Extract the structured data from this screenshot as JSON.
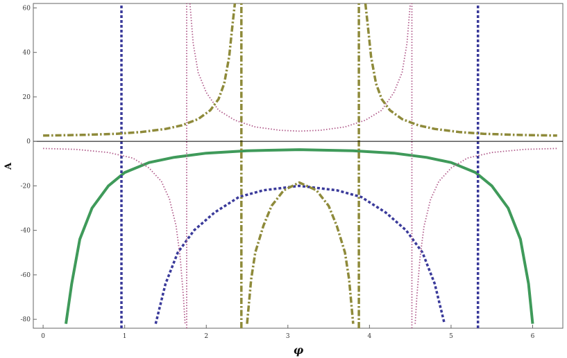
{
  "chart_data": {
    "type": "line",
    "title": "",
    "xlabel": "φ",
    "ylabel": "A",
    "xlim": [
      -0.12,
      6.37
    ],
    "ylim": [
      -84,
      62
    ],
    "x_ticks": [
      0,
      1,
      2,
      3,
      4,
      5,
      6
    ],
    "y_ticks": [
      -80,
      -60,
      -40,
      -20,
      0,
      20,
      40,
      60
    ],
    "legend": "none",
    "grid": false,
    "series": [
      {
        "style": "solid",
        "color": "#3f9a5a",
        "points": [
          [
            0.28,
            -82
          ],
          [
            0.35,
            -64
          ],
          [
            0.45,
            -44
          ],
          [
            0.6,
            -30
          ],
          [
            0.8,
            -20
          ],
          [
            1.0,
            -14
          ],
          [
            1.3,
            -9.5
          ],
          [
            1.6,
            -7.2
          ],
          [
            2.0,
            -5.3
          ],
          [
            2.5,
            -4.2
          ],
          [
            3.14,
            -3.7
          ],
          [
            3.8,
            -4.2
          ],
          [
            4.3,
            -5.3
          ],
          [
            4.7,
            -7.2
          ],
          [
            5.0,
            -9.5
          ],
          [
            5.3,
            -14
          ],
          [
            5.5,
            -20
          ],
          [
            5.7,
            -30
          ],
          [
            5.85,
            -44
          ],
          [
            5.95,
            -64
          ],
          [
            6.0,
            -82
          ]
        ]
      },
      {
        "style": "dashed",
        "color": "#3a3a9a",
        "points": [
          [
            1.38,
            -82
          ],
          [
            1.5,
            -64
          ],
          [
            1.65,
            -50
          ],
          [
            1.85,
            -40
          ],
          [
            2.1,
            -32
          ],
          [
            2.4,
            -25
          ],
          [
            2.7,
            -22
          ],
          [
            3.14,
            -20
          ],
          [
            3.6,
            -22
          ],
          [
            3.9,
            -25
          ],
          [
            4.2,
            -32
          ],
          [
            4.45,
            -40
          ],
          [
            4.65,
            -50
          ],
          [
            4.8,
            -64
          ],
          [
            4.92,
            -82
          ]
        ]
      },
      {
        "style": "dashed",
        "color": "#3a3a9a",
        "points": [
          [
            0.96,
            -84
          ],
          [
            0.96,
            62
          ]
        ]
      },
      {
        "style": "dashed",
        "color": "#3a3a9a",
        "points": [
          [
            5.33,
            -84
          ],
          [
            5.33,
            62
          ]
        ]
      },
      {
        "style": "dotted",
        "color": "#b05a8a",
        "points": [
          [
            0.0,
            -3.2
          ],
          [
            0.4,
            -3.6
          ],
          [
            0.8,
            -5.0
          ],
          [
            1.1,
            -7.5
          ],
          [
            1.3,
            -12
          ],
          [
            1.45,
            -18
          ],
          [
            1.55,
            -26
          ],
          [
            1.63,
            -38
          ],
          [
            1.68,
            -52
          ],
          [
            1.72,
            -70
          ],
          [
            1.74,
            -82
          ]
        ]
      },
      {
        "style": "dotted",
        "color": "#b05a8a",
        "points": [
          [
            1.8,
            62
          ],
          [
            1.84,
            44
          ],
          [
            1.9,
            31
          ],
          [
            2.0,
            22
          ],
          [
            2.15,
            14
          ],
          [
            2.35,
            9.5
          ],
          [
            2.6,
            6.5
          ],
          [
            2.9,
            5
          ],
          [
            3.14,
            4.6
          ],
          [
            3.4,
            5
          ],
          [
            3.7,
            6.5
          ],
          [
            3.95,
            9.5
          ],
          [
            4.15,
            14
          ],
          [
            4.3,
            22
          ],
          [
            4.4,
            31
          ],
          [
            4.46,
            44
          ],
          [
            4.5,
            62
          ]
        ]
      },
      {
        "style": "dotted",
        "color": "#b05a8a",
        "points": [
          [
            4.56,
            -82
          ],
          [
            4.58,
            -70
          ],
          [
            4.62,
            -52
          ],
          [
            4.67,
            -38
          ],
          [
            4.75,
            -26
          ],
          [
            4.85,
            -18
          ],
          [
            5.0,
            -12
          ],
          [
            5.2,
            -7.5
          ],
          [
            5.5,
            -5.0
          ],
          [
            5.9,
            -3.6
          ],
          [
            6.3,
            -3.2
          ]
        ]
      },
      {
        "style": "dotted",
        "color": "#b05a8a",
        "points": [
          [
            1.76,
            -84
          ],
          [
            1.76,
            62
          ]
        ]
      },
      {
        "style": "dotted",
        "color": "#b05a8a",
        "points": [
          [
            4.52,
            -84
          ],
          [
            4.52,
            62
          ]
        ]
      },
      {
        "style": "dashdot",
        "color": "#8e8a3a",
        "points": [
          [
            0.0,
            2.6
          ],
          [
            0.5,
            2.9
          ],
          [
            0.9,
            3.4
          ],
          [
            1.2,
            4.2
          ],
          [
            1.5,
            5.6
          ],
          [
            1.7,
            7.2
          ],
          [
            1.9,
            10
          ],
          [
            2.05,
            14
          ],
          [
            2.15,
            19
          ],
          [
            2.22,
            26
          ],
          [
            2.28,
            38
          ],
          [
            2.32,
            52
          ],
          [
            2.35,
            62
          ]
        ]
      },
      {
        "style": "dashdot",
        "color": "#8e8a3a",
        "points": [
          [
            2.5,
            -82
          ],
          [
            2.55,
            -62
          ],
          [
            2.6,
            -50
          ],
          [
            2.7,
            -38
          ],
          [
            2.8,
            -29
          ],
          [
            2.95,
            -22
          ],
          [
            3.14,
            -18.5
          ],
          [
            3.35,
            -22
          ],
          [
            3.5,
            -29
          ],
          [
            3.6,
            -38
          ],
          [
            3.7,
            -50
          ],
          [
            3.75,
            -62
          ],
          [
            3.8,
            -82
          ]
        ]
      },
      {
        "style": "dashdot",
        "color": "#8e8a3a",
        "points": [
          [
            3.95,
            62
          ],
          [
            3.98,
            52
          ],
          [
            4.02,
            38
          ],
          [
            4.08,
            26
          ],
          [
            4.15,
            19
          ],
          [
            4.25,
            14
          ],
          [
            4.4,
            10
          ],
          [
            4.6,
            7.2
          ],
          [
            4.8,
            5.6
          ],
          [
            5.1,
            4.2
          ],
          [
            5.4,
            3.4
          ],
          [
            5.8,
            2.9
          ],
          [
            6.3,
            2.6
          ]
        ]
      },
      {
        "style": "dashdot",
        "color": "#8e8a3a",
        "points": [
          [
            2.43,
            -84
          ],
          [
            2.43,
            62
          ]
        ]
      },
      {
        "style": "dashdot",
        "color": "#8e8a3a",
        "points": [
          [
            3.87,
            -84
          ],
          [
            3.87,
            62
          ]
        ]
      }
    ]
  }
}
